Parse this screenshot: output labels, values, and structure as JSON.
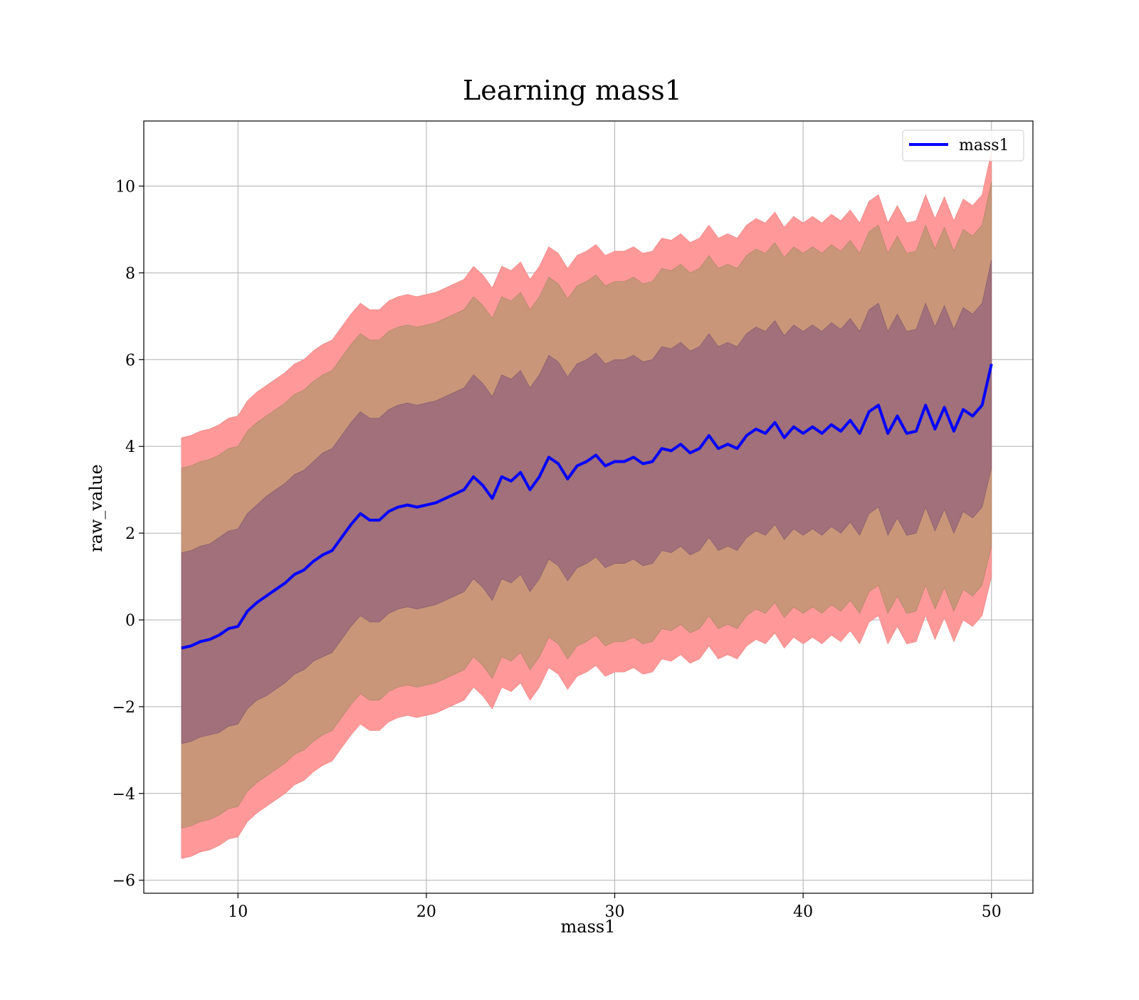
{
  "chart_data": {
    "type": "area",
    "title": "Learning mass1",
    "xlabel": "mass1",
    "ylabel": "raw_value",
    "xlim": [
      5,
      52.2
    ],
    "ylim": [
      -6.3,
      11.5
    ],
    "xticks": [
      10,
      20,
      30,
      40,
      50
    ],
    "yticks": [
      -6,
      -4,
      -2,
      0,
      2,
      4,
      6,
      8,
      10
    ],
    "xtick_labels": [
      "10",
      "20",
      "30",
      "40",
      "50"
    ],
    "ytick_labels": [
      "−6",
      "−4",
      "−2",
      "0",
      "2",
      "4",
      "6",
      "8",
      "10"
    ],
    "grid": true,
    "legend": {
      "position": "top-right",
      "entries": [
        "mass1"
      ]
    },
    "colors": {
      "line": "#0000ff",
      "band_outer": "#ff9999",
      "band_middle": "#c9967a",
      "band_inner": "#a1707a",
      "grid": "#b0b0b0"
    },
    "series": [
      {
        "name": "mass1",
        "x": [
          7.0,
          7.5,
          8.0,
          8.5,
          9.0,
          9.5,
          10.0,
          10.5,
          11.0,
          11.5,
          12.0,
          12.5,
          13.0,
          13.5,
          14.0,
          14.5,
          15.0,
          15.5,
          16.0,
          16.5,
          17.0,
          17.5,
          18.0,
          18.5,
          19.0,
          19.5,
          20.0,
          20.5,
          21.0,
          21.5,
          22.0,
          22.5,
          23.0,
          23.5,
          24.0,
          24.5,
          25.0,
          25.5,
          26.0,
          26.5,
          27.0,
          27.5,
          28.0,
          28.5,
          29.0,
          29.5,
          30.0,
          30.5,
          31.0,
          31.5,
          32.0,
          32.5,
          33.0,
          33.5,
          34.0,
          34.5,
          35.0,
          35.5,
          36.0,
          36.5,
          37.0,
          37.5,
          38.0,
          38.5,
          39.0,
          39.5,
          40.0,
          40.5,
          41.0,
          41.5,
          42.0,
          42.5,
          43.0,
          43.5,
          44.0,
          44.5,
          45.0,
          45.5,
          46.0,
          46.5,
          47.0,
          47.5,
          48.0,
          48.5,
          49.0,
          49.5,
          50.0
        ],
        "y": [
          -0.65,
          -0.6,
          -0.5,
          -0.45,
          -0.35,
          -0.2,
          -0.15,
          0.2,
          0.4,
          0.55,
          0.7,
          0.85,
          1.05,
          1.15,
          1.35,
          1.5,
          1.6,
          1.9,
          2.2,
          2.45,
          2.3,
          2.3,
          2.5,
          2.6,
          2.65,
          2.6,
          2.65,
          2.7,
          2.8,
          2.9,
          3.0,
          3.3,
          3.1,
          2.8,
          3.3,
          3.2,
          3.4,
          3.0,
          3.3,
          3.75,
          3.6,
          3.25,
          3.55,
          3.65,
          3.8,
          3.55,
          3.65,
          3.65,
          3.75,
          3.6,
          3.65,
          3.95,
          3.9,
          4.05,
          3.85,
          3.95,
          4.25,
          3.95,
          4.05,
          3.95,
          4.25,
          4.4,
          4.3,
          4.55,
          4.2,
          4.45,
          4.3,
          4.45,
          4.3,
          4.5,
          4.35,
          4.6,
          4.3,
          4.8,
          4.95,
          4.3,
          4.7,
          4.3,
          4.35,
          4.95,
          4.4,
          4.9,
          4.35,
          4.85,
          4.7,
          4.95,
          5.9
        ],
        "band_inner_halfwidth": [
          2.2,
          2.2,
          2.2,
          2.2,
          2.25,
          2.25,
          2.25,
          2.25,
          2.25,
          2.3,
          2.3,
          2.3,
          2.3,
          2.3,
          2.3,
          2.35,
          2.35,
          2.35,
          2.35,
          2.35,
          2.35,
          2.35,
          2.35,
          2.35,
          2.35,
          2.35,
          2.35,
          2.35,
          2.35,
          2.35,
          2.35,
          2.35,
          2.35,
          2.35,
          2.35,
          2.35,
          2.35,
          2.35,
          2.35,
          2.35,
          2.35,
          2.35,
          2.35,
          2.35,
          2.35,
          2.35,
          2.35,
          2.35,
          2.35,
          2.35,
          2.35,
          2.35,
          2.35,
          2.35,
          2.35,
          2.35,
          2.35,
          2.35,
          2.35,
          2.35,
          2.35,
          2.35,
          2.35,
          2.35,
          2.35,
          2.35,
          2.35,
          2.35,
          2.35,
          2.35,
          2.35,
          2.35,
          2.35,
          2.35,
          2.35,
          2.35,
          2.35,
          2.35,
          2.35,
          2.35,
          2.35,
          2.35,
          2.35,
          2.35,
          2.35,
          2.35,
          2.4
        ],
        "band_middle_halfwidth": [
          4.15,
          4.15,
          4.15,
          4.15,
          4.15,
          4.15,
          4.15,
          4.15,
          4.15,
          4.15,
          4.15,
          4.15,
          4.15,
          4.15,
          4.15,
          4.15,
          4.15,
          4.15,
          4.15,
          4.15,
          4.15,
          4.15,
          4.15,
          4.15,
          4.15,
          4.15,
          4.15,
          4.15,
          4.15,
          4.15,
          4.15,
          4.15,
          4.15,
          4.15,
          4.15,
          4.15,
          4.15,
          4.15,
          4.15,
          4.15,
          4.15,
          4.15,
          4.15,
          4.15,
          4.15,
          4.15,
          4.15,
          4.15,
          4.15,
          4.15,
          4.15,
          4.15,
          4.15,
          4.15,
          4.15,
          4.15,
          4.15,
          4.15,
          4.15,
          4.15,
          4.15,
          4.15,
          4.15,
          4.15,
          4.15,
          4.15,
          4.15,
          4.15,
          4.15,
          4.15,
          4.15,
          4.15,
          4.15,
          4.15,
          4.15,
          4.15,
          4.15,
          4.15,
          4.15,
          4.15,
          4.15,
          4.15,
          4.15,
          4.15,
          4.15,
          4.15,
          4.2
        ],
        "band_outer_halfwidth": [
          4.85,
          4.85,
          4.85,
          4.85,
          4.85,
          4.85,
          4.85,
          4.85,
          4.85,
          4.85,
          4.85,
          4.85,
          4.85,
          4.85,
          4.85,
          4.85,
          4.85,
          4.85,
          4.85,
          4.85,
          4.85,
          4.85,
          4.85,
          4.85,
          4.85,
          4.85,
          4.85,
          4.85,
          4.85,
          4.85,
          4.85,
          4.85,
          4.85,
          4.85,
          4.85,
          4.85,
          4.85,
          4.85,
          4.85,
          4.85,
          4.85,
          4.85,
          4.85,
          4.85,
          4.85,
          4.85,
          4.85,
          4.85,
          4.85,
          4.85,
          4.85,
          4.85,
          4.85,
          4.85,
          4.85,
          4.85,
          4.85,
          4.85,
          4.85,
          4.85,
          4.85,
          4.85,
          4.85,
          4.85,
          4.85,
          4.85,
          4.85,
          4.85,
          4.85,
          4.85,
          4.85,
          4.85,
          4.85,
          4.85,
          4.85,
          4.85,
          4.85,
          4.85,
          4.85,
          4.85,
          4.85,
          4.85,
          4.85,
          4.85,
          4.85,
          4.85,
          4.9
        ]
      }
    ]
  }
}
